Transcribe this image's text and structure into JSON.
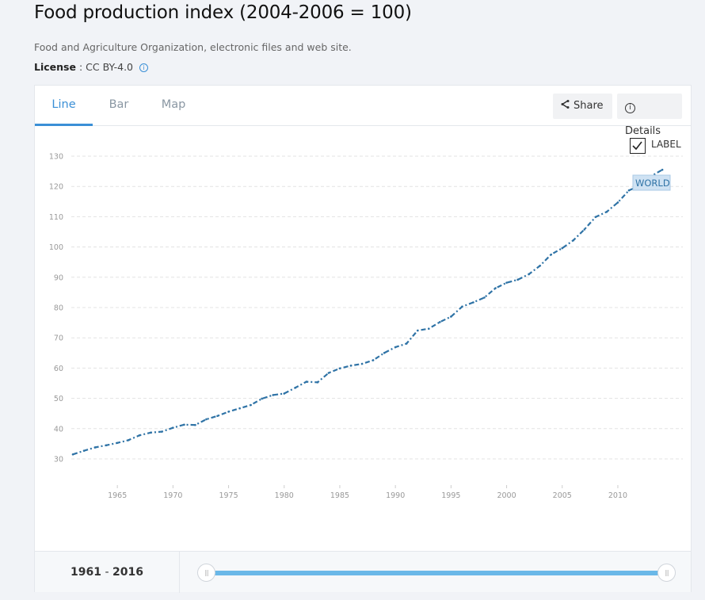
{
  "header": {
    "title": "Food production index (2004-2006 = 100)",
    "source": "Food and Agriculture Organization, electronic files and web site.",
    "license_label": "License",
    "license_sep": " : ",
    "license_value": "CC BY-4.0",
    "info_icon": "ⓘ"
  },
  "tabs": [
    {
      "label": "Line",
      "active": true
    },
    {
      "label": "Bar",
      "active": false
    },
    {
      "label": "Map",
      "active": false
    }
  ],
  "toolbar": {
    "share_label": "Share",
    "share_icon": "share-icon",
    "details_label": "Details",
    "details_icon": "info-icon"
  },
  "label_toggle": {
    "text": "LABEL",
    "checked": true
  },
  "range": {
    "start": "1961",
    "sep": " - ",
    "end": "2016"
  },
  "colors": {
    "line": "#2f73a6",
    "accent": "#3a8fd6",
    "slider": "#6ab8e8"
  },
  "chart_data": {
    "type": "line",
    "title": "Food production index (2004-2006 = 100)",
    "xlabel": "",
    "ylabel": "",
    "xlim": [
      1961,
      2014
    ],
    "ylim": [
      30,
      130
    ],
    "grid": true,
    "x_ticks": [
      "1965",
      "1970",
      "1975",
      "1980",
      "1985",
      "1990",
      "1995",
      "2000",
      "2005",
      "2010"
    ],
    "y_ticks": [
      "30",
      "40",
      "50",
      "60",
      "70",
      "80",
      "90",
      "100",
      "110",
      "120",
      "130"
    ],
    "series": [
      {
        "name": "WORLD",
        "x": [
          1961,
          1962,
          1963,
          1964,
          1965,
          1966,
          1967,
          1968,
          1969,
          1970,
          1971,
          1972,
          1973,
          1974,
          1975,
          1976,
          1977,
          1978,
          1979,
          1980,
          1981,
          1982,
          1983,
          1984,
          1985,
          1986,
          1987,
          1988,
          1989,
          1990,
          1991,
          1992,
          1993,
          1994,
          1995,
          1996,
          1997,
          1998,
          1999,
          2000,
          2001,
          2002,
          2003,
          2004,
          2005,
          2006,
          2007,
          2008,
          2009,
          2010,
          2011,
          2012,
          2013,
          2014
        ],
        "values": [
          31.5,
          32.7,
          33.8,
          34.5,
          35.3,
          36.2,
          37.8,
          38.7,
          39.0,
          40.3,
          41.3,
          41.2,
          43.1,
          44.2,
          45.6,
          46.7,
          47.8,
          49.9,
          51.1,
          51.6,
          53.5,
          55.5,
          55.3,
          58.4,
          59.9,
          60.8,
          61.4,
          62.6,
          65.0,
          66.9,
          68.1,
          72.4,
          73.0,
          75.2,
          77.0,
          80.3,
          81.7,
          83.3,
          86.4,
          88.2,
          89.2,
          91.0,
          93.8,
          97.5,
          99.6,
          102.2,
          105.8,
          109.9,
          111.6,
          114.7,
          118.7,
          120.3,
          123.4,
          125.5
        ]
      }
    ],
    "annotations": [
      "WORLD"
    ],
    "legend": "none"
  }
}
